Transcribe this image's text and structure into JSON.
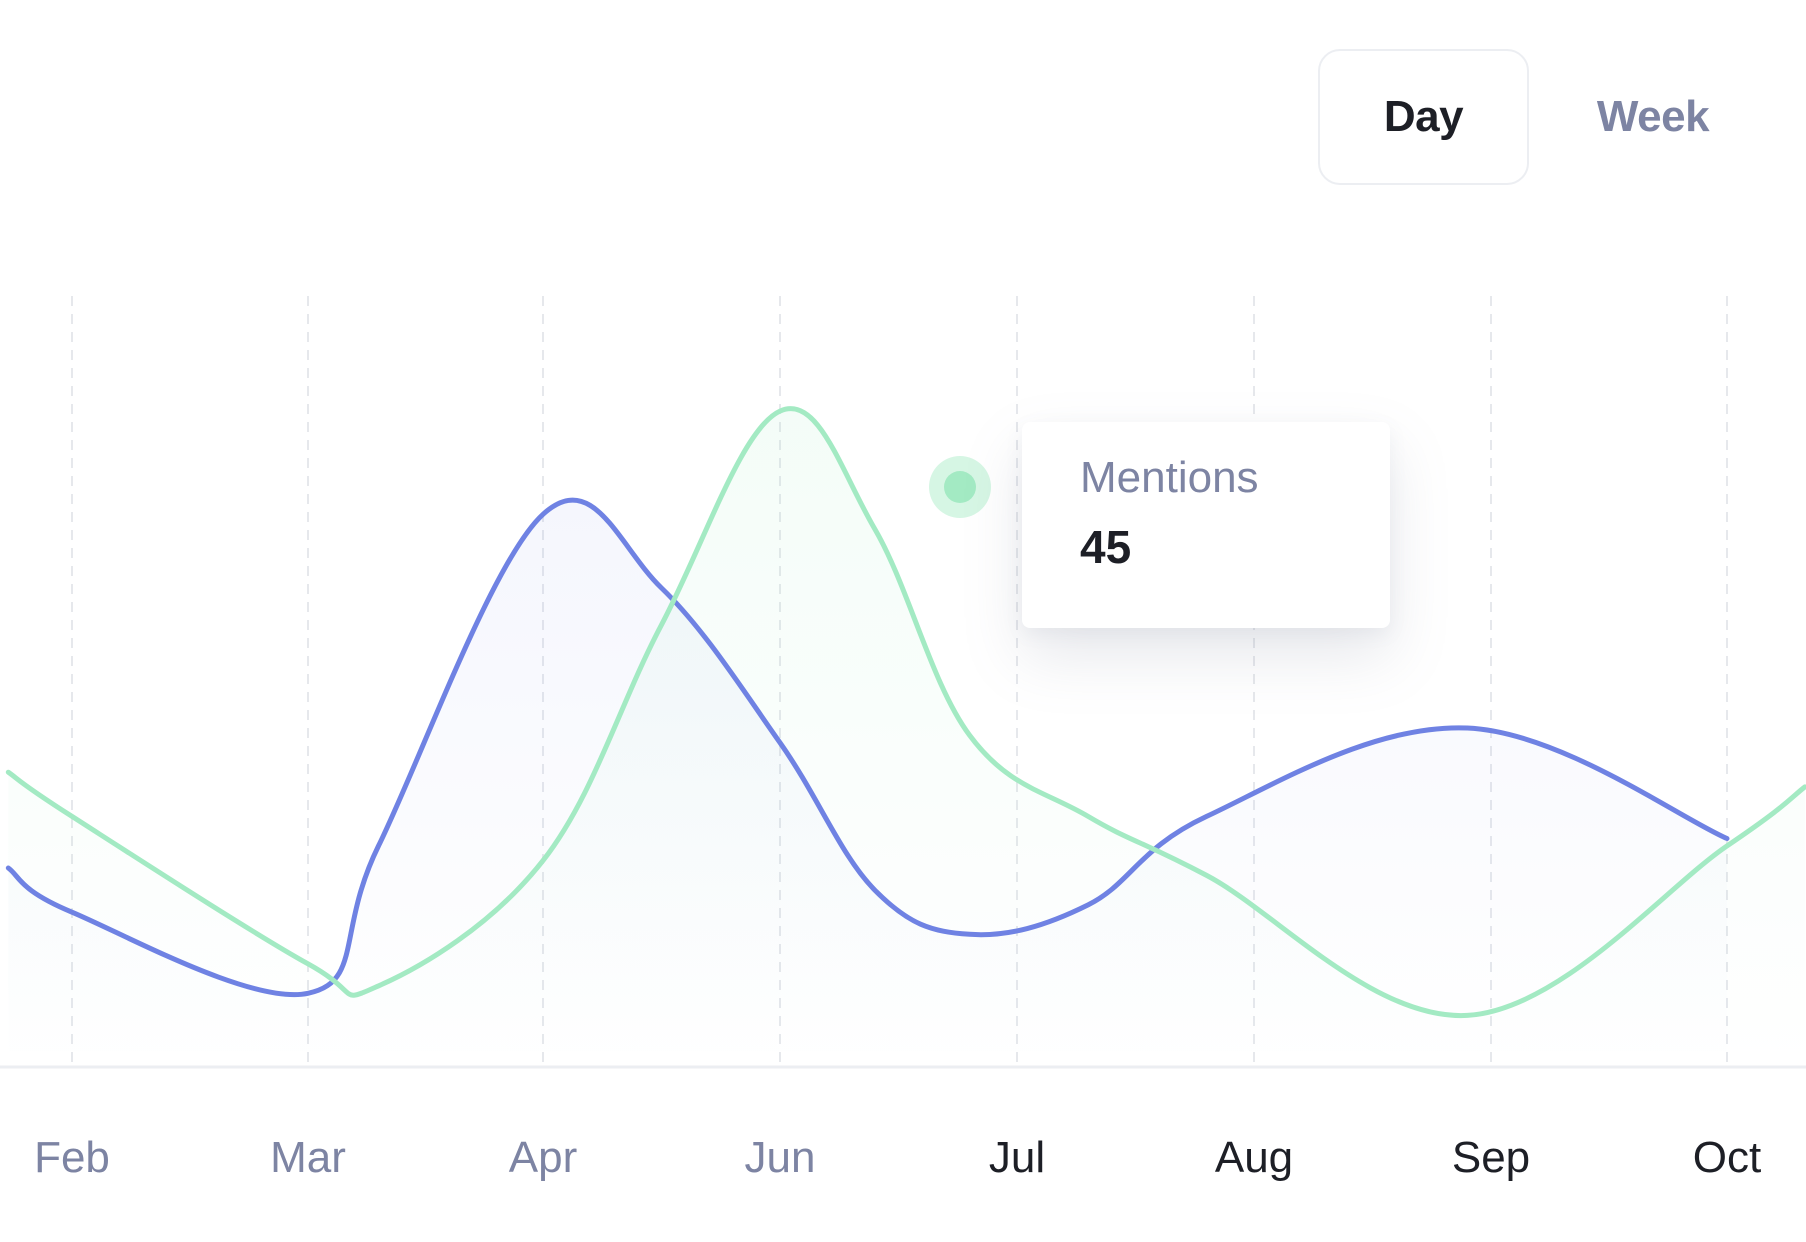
{
  "toggle": {
    "options": [
      "Day",
      "Week"
    ],
    "active": "Day"
  },
  "tooltip": {
    "label": "Mentions",
    "value": "45"
  },
  "colors": {
    "series_blue": "#6f82e3",
    "series_green": "#a3eac3",
    "label_muted": "#7d84a3",
    "label_dark": "#1d1f26",
    "grid": "#e6e8ec"
  },
  "chart_data": {
    "type": "line",
    "smooth": true,
    "area_fill": true,
    "grid": "vertical-dashed",
    "x_labels": [
      "Feb",
      "Mar",
      "Apr",
      "Jun",
      "Jul",
      "Aug",
      "Sep",
      "Oct"
    ],
    "x_labels_muted": [
      "Feb",
      "Mar",
      "Apr",
      "Jun"
    ],
    "y_ticks_shown": false,
    "y_range": [
      0,
      100
    ],
    "series": [
      {
        "color": "#6f82e3",
        "points": [
          {
            "x": "Jan",
            "y": 27
          },
          {
            "x": "Feb",
            "y": 21
          },
          {
            "x": "Mar",
            "y": 10
          },
          {
            "x": "Mar-Apr",
            "y": 30
          },
          {
            "x": "Apr",
            "y": 75
          },
          {
            "x": "Apr-Jun",
            "y": 65
          },
          {
            "x": "Jun",
            "y": 44
          },
          {
            "x": "Jun-Jul",
            "y": 24
          },
          {
            "x": "Jul",
            "y": 18
          },
          {
            "x": "Jul-Aug",
            "y": 22
          },
          {
            "x": "Aug",
            "y": 34
          },
          {
            "x": "Sep",
            "y": 46
          },
          {
            "x": "Oct",
            "y": 31
          }
        ]
      },
      {
        "color": "#a3eac3",
        "points": [
          {
            "x": "Jan",
            "y": 40
          },
          {
            "x": "Feb",
            "y": 34
          },
          {
            "x": "Mar",
            "y": 14
          },
          {
            "x": "Mar-Apr",
            "y": 11
          },
          {
            "x": "Apr",
            "y": 28
          },
          {
            "x": "Apr-Jun",
            "y": 60
          },
          {
            "x": "Jun",
            "y": 89
          },
          {
            "x": "Jun-Jul",
            "y": 73
          },
          {
            "x": "Jul",
            "y": 45
          },
          {
            "x": "Jul-Aug",
            "y": 34
          },
          {
            "x": "Aug",
            "y": 26
          },
          {
            "x": "Sep",
            "y": 7
          },
          {
            "x": "Oct",
            "y": 30
          },
          {
            "x": "Oct+",
            "y": 38
          }
        ]
      }
    ],
    "highlight": {
      "series_index": 1,
      "x": "Jul",
      "y": 45
    }
  }
}
